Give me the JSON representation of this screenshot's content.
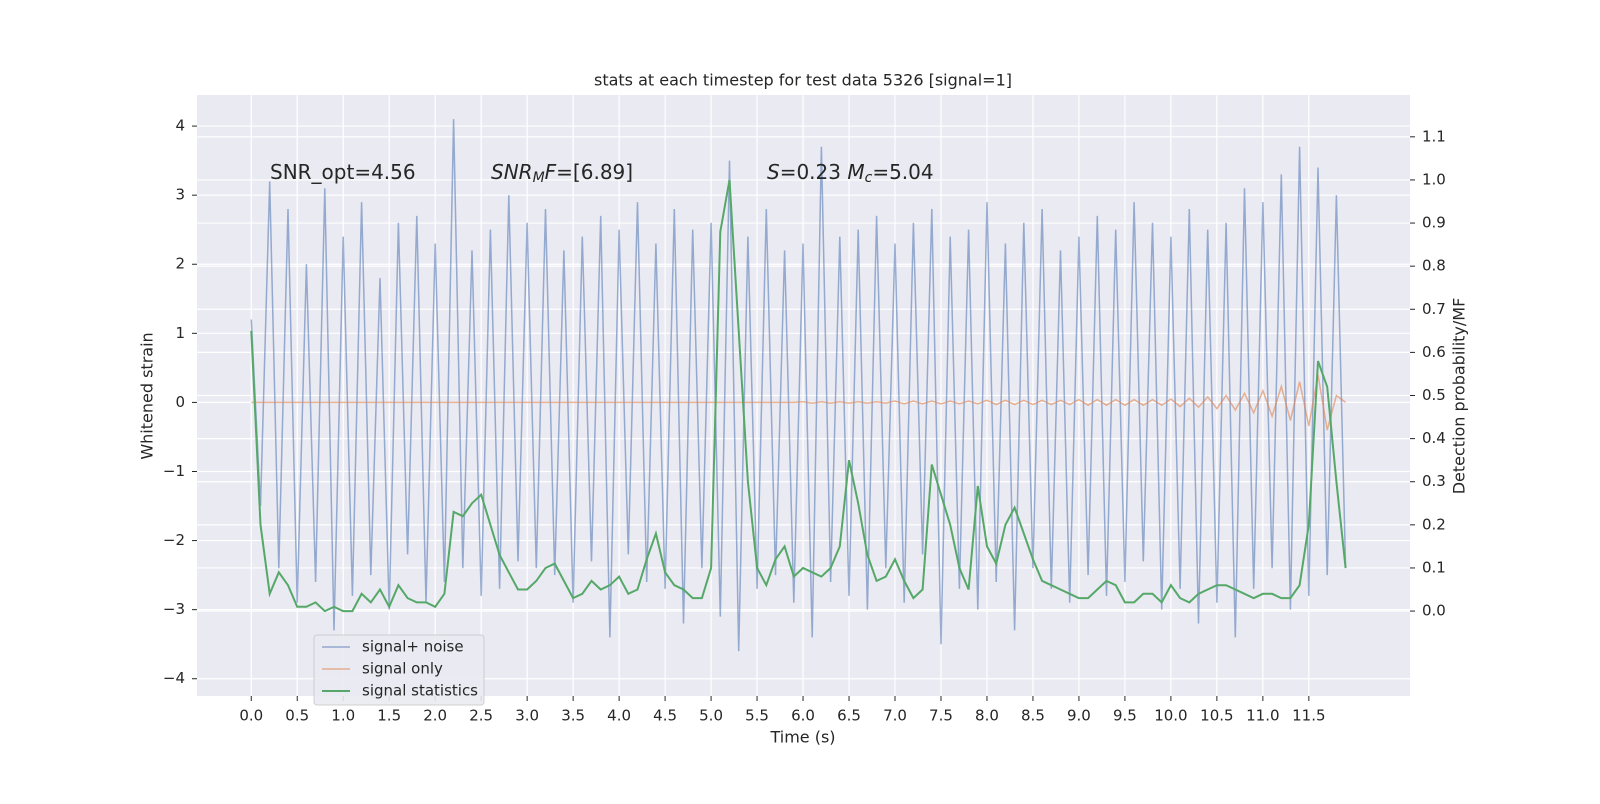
{
  "chart_data": {
    "type": "line",
    "title": "stats at each timestep for test data 5326 [signal=1]",
    "xlabel": "Time (s)",
    "ylabel": "Whitened strain",
    "y2label": "Detection probability/MF",
    "annotations": [
      [
        {
          "text": "SNR_opt=4.56",
          "style": "normal"
        }
      ],
      [
        {
          "text": "SNR",
          "style": "italic"
        },
        {
          "text": "M",
          "style": "sub-italic"
        },
        {
          "text": "F",
          "style": "italic"
        },
        {
          "text": "=[6.89]",
          "style": "normal"
        }
      ],
      [
        {
          "text": "S",
          "style": "italic"
        },
        {
          "text": "=0.23   ",
          "style": "normal"
        },
        {
          "text": "M",
          "style": "italic"
        },
        {
          "text": "c",
          "style": "sub-italic"
        },
        {
          "text": "=5.04",
          "style": "normal"
        }
      ]
    ],
    "x": [
      0,
      0.1,
      0.2,
      0.3,
      0.4,
      0.5,
      0.6,
      0.7,
      0.8,
      0.9,
      1,
      1.1,
      1.2,
      1.3,
      1.4,
      1.5,
      1.6,
      1.7,
      1.8,
      1.9,
      2,
      2.1,
      2.2,
      2.3,
      2.4,
      2.5,
      2.6,
      2.7,
      2.8,
      2.9,
      3,
      3.1,
      3.2,
      3.3,
      3.4,
      3.5,
      3.6,
      3.7,
      3.8,
      3.9,
      4,
      4.1,
      4.2,
      4.3,
      4.4,
      4.5,
      4.6,
      4.7,
      4.8,
      4.9,
      5,
      5.1,
      5.2,
      5.3,
      5.4,
      5.5,
      5.6,
      5.7,
      5.8,
      5.9,
      6,
      6.1,
      6.2,
      6.3,
      6.4,
      6.5,
      6.6,
      6.7,
      6.8,
      6.9,
      7,
      7.1,
      7.2,
      7.3,
      7.4,
      7.5,
      7.6,
      7.7,
      7.8,
      7.9,
      8,
      8.1,
      8.2,
      8.3,
      8.4,
      8.5,
      8.6,
      8.7,
      8.8,
      8.9,
      9,
      9.1,
      9.2,
      9.3,
      9.4,
      9.5,
      9.6,
      9.7,
      9.8,
      9.9,
      10,
      10.1,
      10.2,
      10.3,
      10.4,
      10.5,
      10.6,
      10.7,
      10.8,
      10.9,
      11,
      11.1,
      11.2,
      11.3,
      11.4,
      11.5,
      11.6,
      11.7,
      11.8,
      11.9
    ],
    "series": [
      {
        "name": "signal+ noise",
        "color": "#4c72b0",
        "axis": "y",
        "values": [
          1.2,
          -1.5,
          3.2,
          -2.4,
          2.8,
          -2.9,
          2.0,
          -2.6,
          3.1,
          -3.3,
          2.4,
          -2.8,
          2.9,
          -2.5,
          1.8,
          -3.0,
          2.6,
          -2.2,
          2.7,
          -2.9,
          2.3,
          -2.6,
          4.1,
          -2.4,
          2.2,
          -2.8,
          2.5,
          -2.7,
          3.0,
          -2.3,
          2.6,
          -2.4,
          2.8,
          -2.5,
          2.2,
          -2.9,
          2.4,
          -2.3,
          2.7,
          -3.4,
          2.5,
          -2.2,
          2.9,
          -2.6,
          2.3,
          -2.7,
          2.8,
          -3.2,
          2.5,
          -2.4,
          2.6,
          -3.1,
          3.5,
          -3.6,
          2.4,
          -2.7,
          2.8,
          -2.5,
          2.2,
          -2.9,
          2.3,
          -3.4,
          3.7,
          -2.6,
          2.4,
          -2.8,
          2.5,
          -3.0,
          2.7,
          -2.4,
          2.3,
          -2.9,
          2.6,
          -2.2,
          2.8,
          -3.5,
          2.4,
          -2.7,
          2.5,
          -3.0,
          2.9,
          -2.6,
          2.3,
          -3.3,
          2.6,
          -2.4,
          2.8,
          -2.7,
          2.2,
          -2.9,
          2.4,
          -2.5,
          2.7,
          -2.8,
          2.5,
          -2.6,
          2.9,
          -2.3,
          2.6,
          -3.0,
          2.4,
          -2.7,
          2.8,
          -3.2,
          2.5,
          -2.9,
          2.6,
          -3.4,
          3.1,
          -2.7,
          2.9,
          -2.4,
          3.3,
          -3.0,
          3.7,
          -2.8,
          3.4,
          -2.5,
          3.0,
          -2.4
        ]
      },
      {
        "name": "signal only",
        "color": "#dd8452",
        "axis": "y",
        "values": [
          0,
          0,
          0,
          0,
          0,
          0,
          0,
          0,
          0,
          0,
          0,
          0,
          0,
          0,
          0,
          0,
          0,
          0,
          0,
          0,
          0,
          0,
          0,
          0,
          0,
          0,
          0,
          0,
          0,
          0,
          0,
          0,
          0,
          0,
          0,
          0,
          0,
          0,
          0,
          0,
          0,
          0,
          0,
          0,
          0,
          0,
          0,
          0,
          0,
          0,
          0,
          0,
          0,
          0,
          0,
          0,
          0,
          0,
          0,
          0,
          0.01,
          -0.01,
          0.01,
          -0.01,
          0.01,
          -0.01,
          0.01,
          -0.01,
          0.01,
          -0.01,
          0.02,
          -0.02,
          0.02,
          -0.02,
          0.02,
          -0.02,
          0.02,
          -0.02,
          0.02,
          -0.02,
          0.03,
          -0.03,
          0.03,
          -0.03,
          0.03,
          -0.03,
          0.03,
          -0.03,
          0.03,
          -0.03,
          0.04,
          -0.04,
          0.04,
          -0.04,
          0.04,
          -0.04,
          0.04,
          -0.04,
          0.04,
          -0.04,
          0.05,
          -0.06,
          0.06,
          -0.07,
          0.08,
          -0.09,
          0.1,
          -0.11,
          0.13,
          -0.15,
          0.17,
          -0.2,
          0.23,
          -0.26,
          0.3,
          -0.34,
          0.4,
          -0.4,
          0.1,
          0
        ]
      },
      {
        "name": "signal statistics",
        "color": "#55a868",
        "axis": "y2",
        "values": [
          0.65,
          0.2,
          0.04,
          0.09,
          0.06,
          0.01,
          0.01,
          0.02,
          0,
          0.01,
          0,
          0,
          0.04,
          0.02,
          0.05,
          0.01,
          0.06,
          0.03,
          0.02,
          0.02,
          0.01,
          0.04,
          0.23,
          0.22,
          0.25,
          0.27,
          0.2,
          0.13,
          0.09,
          0.05,
          0.05,
          0.07,
          0.1,
          0.11,
          0.07,
          0.03,
          0.04,
          0.07,
          0.05,
          0.06,
          0.08,
          0.04,
          0.05,
          0.12,
          0.18,
          0.09,
          0.06,
          0.05,
          0.03,
          0.03,
          0.1,
          0.88,
          1.0,
          0.65,
          0.3,
          0.1,
          0.06,
          0.12,
          0.15,
          0.08,
          0.1,
          0.09,
          0.08,
          0.1,
          0.15,
          0.35,
          0.25,
          0.13,
          0.07,
          0.08,
          0.12,
          0.07,
          0.03,
          0.05,
          0.34,
          0.27,
          0.2,
          0.1,
          0.05,
          0.29,
          0.15,
          0.11,
          0.2,
          0.24,
          0.18,
          0.12,
          0.07,
          0.06,
          0.05,
          0.04,
          0.03,
          0.03,
          0.05,
          0.07,
          0.06,
          0.02,
          0.02,
          0.04,
          0.04,
          0.02,
          0.06,
          0.03,
          0.02,
          0.04,
          0.05,
          0.06,
          0.06,
          0.05,
          0.04,
          0.03,
          0.04,
          0.04,
          0.03,
          0.03,
          0.06,
          0.2,
          0.58,
          0.52,
          0.3,
          0.1
        ]
      }
    ],
    "xlim": [
      -0.59,
      12.6
    ],
    "ylim": [
      -4.25,
      4.45
    ],
    "y2lim": [
      -0.197,
      1.197
    ],
    "xticks": [
      {
        "value": 0,
        "label": "0.0"
      },
      0.5,
      {
        "value": 1,
        "label": "1.0"
      },
      1.5,
      {
        "value": 2,
        "label": "2.0"
      },
      2.5,
      {
        "value": 3,
        "label": "3.0"
      },
      3.5,
      {
        "value": 4,
        "label": "4.0"
      },
      4.5,
      {
        "value": 5,
        "label": "5.0"
      },
      5.5,
      {
        "value": 6,
        "label": "6.0"
      },
      6.5,
      {
        "value": 7,
        "label": "7.0"
      },
      7.5,
      {
        "value": 8,
        "label": "8.0"
      },
      8.5,
      {
        "value": 9,
        "label": "9.0"
      },
      9.5,
      {
        "value": 10,
        "label": "10.0"
      },
      10.5,
      {
        "value": 11,
        "label": "11.0"
      },
      11.5
    ],
    "yticks": [
      {
        "value": -4,
        "label": "−4"
      },
      {
        "value": -3,
        "label": "−3"
      },
      {
        "value": -2,
        "label": "−2"
      },
      {
        "value": -1,
        "label": "−1"
      },
      0,
      1,
      2,
      3,
      4
    ],
    "y2ticks": [
      {
        "value": 0,
        "label": "0.0"
      },
      0.1,
      0.2,
      0.3,
      0.4,
      0.5,
      0.6,
      0.7,
      0.8,
      0.9,
      {
        "value": 1,
        "label": "1.0"
      },
      1.1
    ],
    "grid": true,
    "legend": "lower left"
  }
}
